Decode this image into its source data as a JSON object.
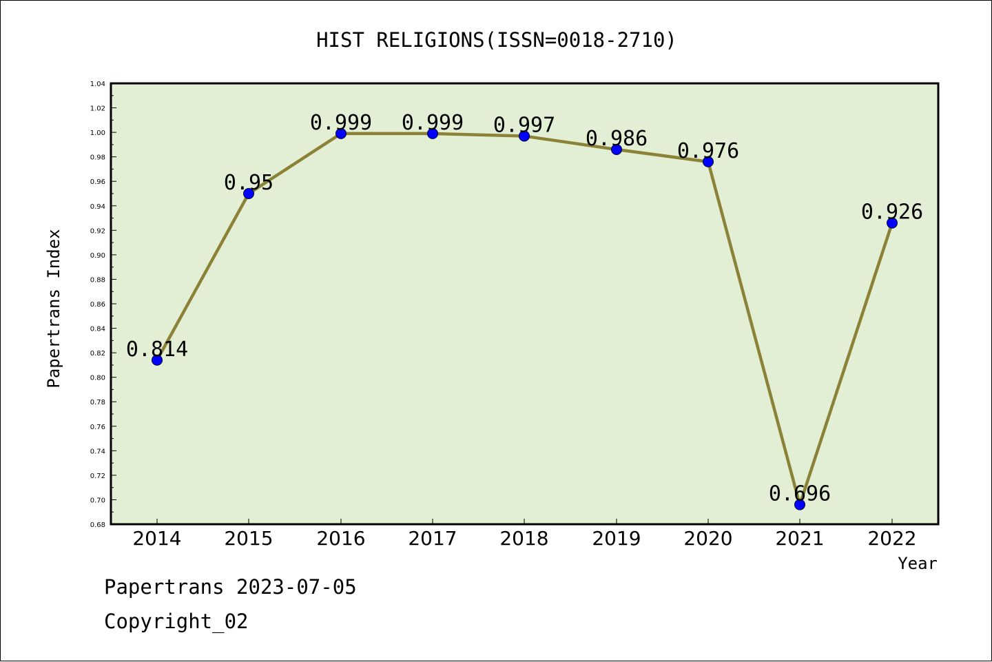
{
  "footer": {
    "line1": "Papertrans 2023-07-05",
    "line2": "Copyright_02"
  },
  "colors": {
    "plot_background": "#e2efd5",
    "line": "#8b8237",
    "marker": "#0000ff"
  },
  "chart_data": {
    "type": "line",
    "title": "HIST RELIGIONS(ISSN=0018-2710)",
    "xlabel": "Year",
    "ylabel": "Papertrans Index",
    "categories": [
      "2014",
      "2015",
      "2016",
      "2017",
      "2018",
      "2019",
      "2020",
      "2021",
      "2022"
    ],
    "series": [
      {
        "values": [
          0.814,
          0.95,
          0.999,
          0.999,
          0.997,
          0.986,
          0.976,
          0.696,
          0.926
        ],
        "data_labels": [
          "0.814",
          "0.95",
          "0.999",
          "0.999",
          "0.997",
          "0.986",
          "0.976",
          "0.696",
          "0.926"
        ]
      }
    ],
    "ylim": [
      0.68,
      1.04
    ],
    "yticks": [
      "0.68",
      "0.70",
      "0.72",
      "0.74",
      "0.76",
      "0.78",
      "0.80",
      "0.82",
      "0.84",
      "0.86",
      "0.88",
      "0.90",
      "0.92",
      "0.94",
      "0.96",
      "0.98",
      "1.00",
      "1.02",
      "1.04"
    ],
    "grid": false,
    "legend": "none"
  }
}
